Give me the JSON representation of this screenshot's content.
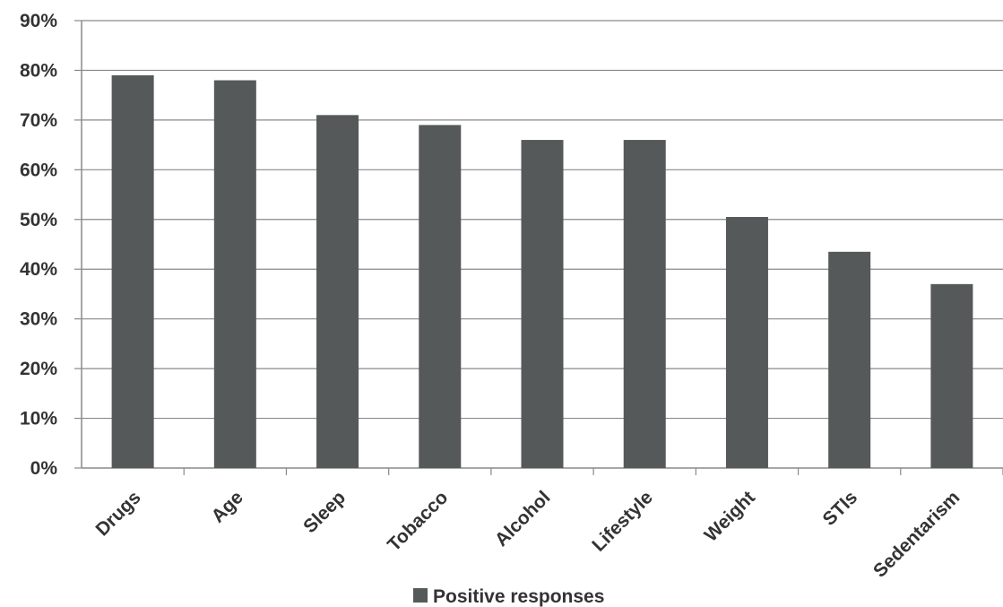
{
  "chart_data": {
    "type": "bar",
    "categories": [
      "Drugs",
      "Age",
      "Sleep",
      "Tobacco",
      "Alcohol",
      "Lifestyle",
      "Weight",
      "STIs",
      "Sedentarism"
    ],
    "series": [
      {
        "name": "Positive responses",
        "values": [
          79,
          78,
          71,
          69,
          66,
          66,
          50.5,
          43.5,
          37
        ],
        "color": "#555959"
      }
    ],
    "ylim": [
      0,
      90
    ],
    "yticks": [
      "0%",
      "10%",
      "20%",
      "30%",
      "40%",
      "50%",
      "60%",
      "70%",
      "80%",
      "90%"
    ],
    "grid": true,
    "legend_position": "bottom-center",
    "title": "",
    "xlabel": "",
    "ylabel": ""
  }
}
